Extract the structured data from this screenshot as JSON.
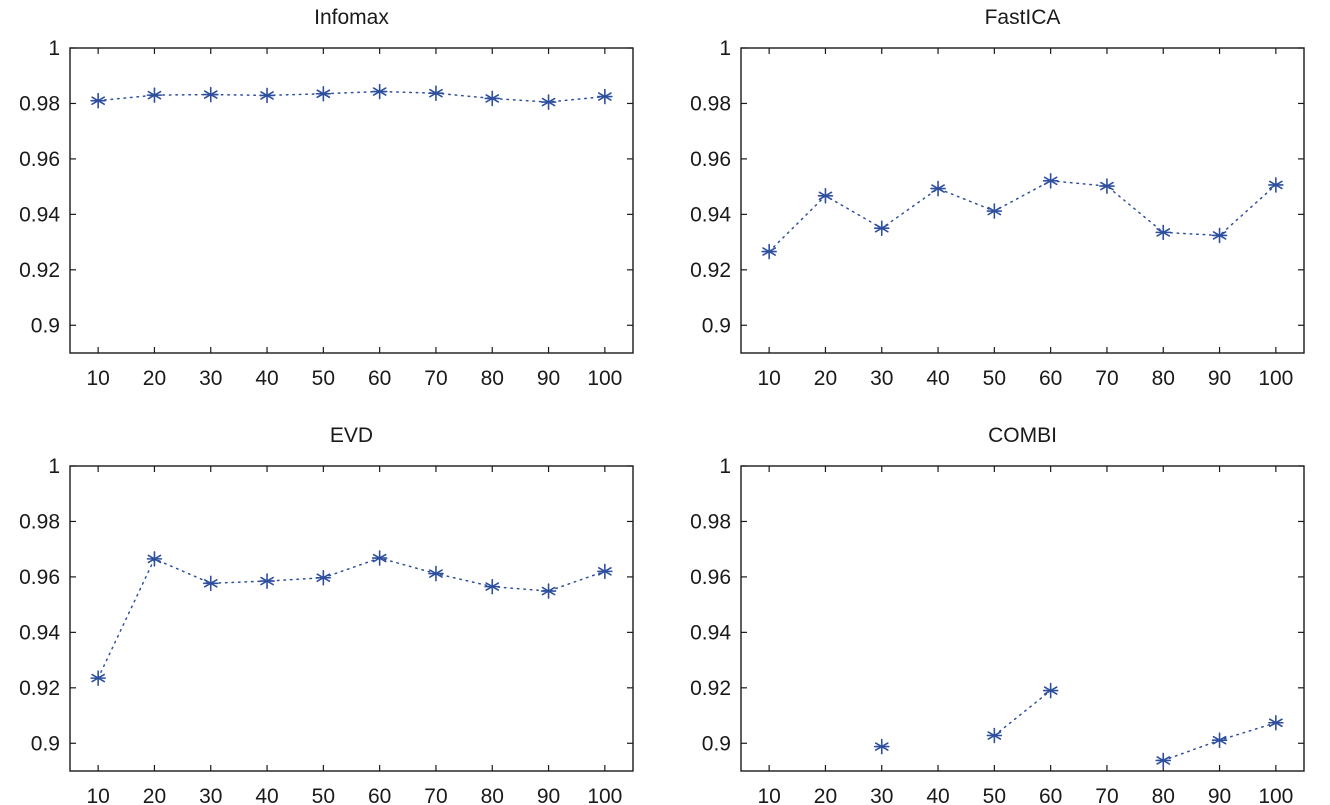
{
  "style": {
    "series_color": "#2e4f9e",
    "axis_color": "#1a1a1a"
  },
  "chart_data": [
    {
      "type": "line",
      "title": "Infomax",
      "xlabel": "",
      "ylabel": "",
      "x": [
        10,
        20,
        30,
        40,
        50,
        60,
        70,
        80,
        90,
        100
      ],
      "xticks": [
        "10",
        "20",
        "30",
        "40",
        "50",
        "60",
        "70",
        "80",
        "90",
        "100"
      ],
      "yticks": [
        "0.9",
        "0.92",
        "0.94",
        "0.96",
        "0.98",
        "1"
      ],
      "xlim": [
        5,
        105
      ],
      "ylim": [
        0.89,
        1.0
      ],
      "grid": false,
      "marker": "asterisk",
      "line_style": "dotted",
      "series": [
        {
          "values": [
            0.981,
            0.983,
            0.9832,
            0.9829,
            0.9835,
            0.9843,
            0.9837,
            0.9818,
            0.9805,
            0.9825
          ]
        }
      ]
    },
    {
      "type": "line",
      "title": "FastICA",
      "xlabel": "",
      "ylabel": "",
      "x": [
        10,
        20,
        30,
        40,
        50,
        60,
        70,
        80,
        90,
        100
      ],
      "xticks": [
        "10",
        "20",
        "30",
        "40",
        "50",
        "60",
        "70",
        "80",
        "90",
        "100"
      ],
      "yticks": [
        "0.9",
        "0.92",
        "0.94",
        "0.96",
        "0.98",
        "1"
      ],
      "xlim": [
        5,
        105
      ],
      "ylim": [
        0.89,
        1.0
      ],
      "grid": false,
      "marker": "asterisk",
      "line_style": "dotted",
      "series": [
        {
          "values": [
            0.9266,
            0.9467,
            0.935,
            0.9493,
            0.9412,
            0.9521,
            0.9502,
            0.9335,
            0.9324,
            0.9506
          ]
        }
      ]
    },
    {
      "type": "line",
      "title": "EVD",
      "xlabel": "",
      "ylabel": "",
      "x": [
        10,
        20,
        30,
        40,
        50,
        60,
        70,
        80,
        90,
        100
      ],
      "xticks": [
        "10",
        "20",
        "30",
        "40",
        "50",
        "60",
        "70",
        "80",
        "90",
        "100"
      ],
      "yticks": [
        "0.9",
        "0.92",
        "0.94",
        "0.96",
        "0.98",
        "1"
      ],
      "xlim": [
        5,
        105
      ],
      "ylim": [
        0.89,
        1.0
      ],
      "grid": false,
      "marker": "asterisk",
      "line_style": "dotted",
      "series": [
        {
          "values": [
            0.9235,
            0.9665,
            0.9577,
            0.9585,
            0.9597,
            0.9668,
            0.9612,
            0.9565,
            0.9549,
            0.962
          ]
        }
      ]
    },
    {
      "type": "line",
      "title": "COMBI",
      "xlabel": "",
      "ylabel": "",
      "x": [
        10,
        20,
        30,
        40,
        50,
        60,
        70,
        80,
        90,
        100
      ],
      "xticks": [
        "10",
        "20",
        "30",
        "40",
        "50",
        "60",
        "70",
        "80",
        "90",
        "100"
      ],
      "yticks": [
        "0.9",
        "0.92",
        "0.94",
        "0.96",
        "0.98",
        "1"
      ],
      "xlim": [
        5,
        105
      ],
      "ylim": [
        0.89,
        1.0
      ],
      "grid": false,
      "marker": "asterisk",
      "line_style": "dotted",
      "series": [
        {
          "values": [
            null,
            null,
            0.8988,
            null,
            0.9028,
            0.919,
            null,
            0.8938,
            0.9011,
            0.9074
          ]
        }
      ]
    }
  ]
}
